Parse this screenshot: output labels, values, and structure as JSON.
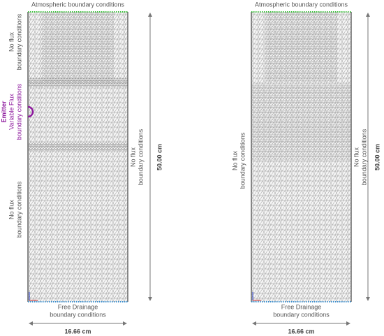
{
  "panels": [
    {
      "top_label": "Atmospheric boundary conditions",
      "left_labels": [
        {
          "lines": [
            "No flux",
            "boundary conditions"
          ]
        },
        {
          "lines": [
            "Emitter",
            "Variable Flux",
            "boundary conditions"
          ],
          "color": "#8e1a9e"
        },
        {
          "lines": [
            "No flux",
            "boundary conditions"
          ]
        }
      ],
      "right_label": {
        "lines": [
          "No flux",
          "boundary conditions"
        ]
      },
      "height_label": "50.00 cm",
      "bottom_label": {
        "lines": [
          "Free Drainage",
          "boundary conditions"
        ]
      },
      "width_label": "16.66 cm"
    },
    {
      "top_label": "Atmospheric boundary conditions",
      "left_labels": [
        {
          "lines": [
            "No flux",
            "boundary conditions"
          ]
        }
      ],
      "right_label": {
        "lines": [
          "No flux",
          "boundary conditions"
        ]
      },
      "height_label": "50.00 cm",
      "bottom_label": {
        "lines": [
          "Free Drainage",
          "boundary conditions"
        ]
      },
      "width_label": "16.66 cm"
    }
  ]
}
